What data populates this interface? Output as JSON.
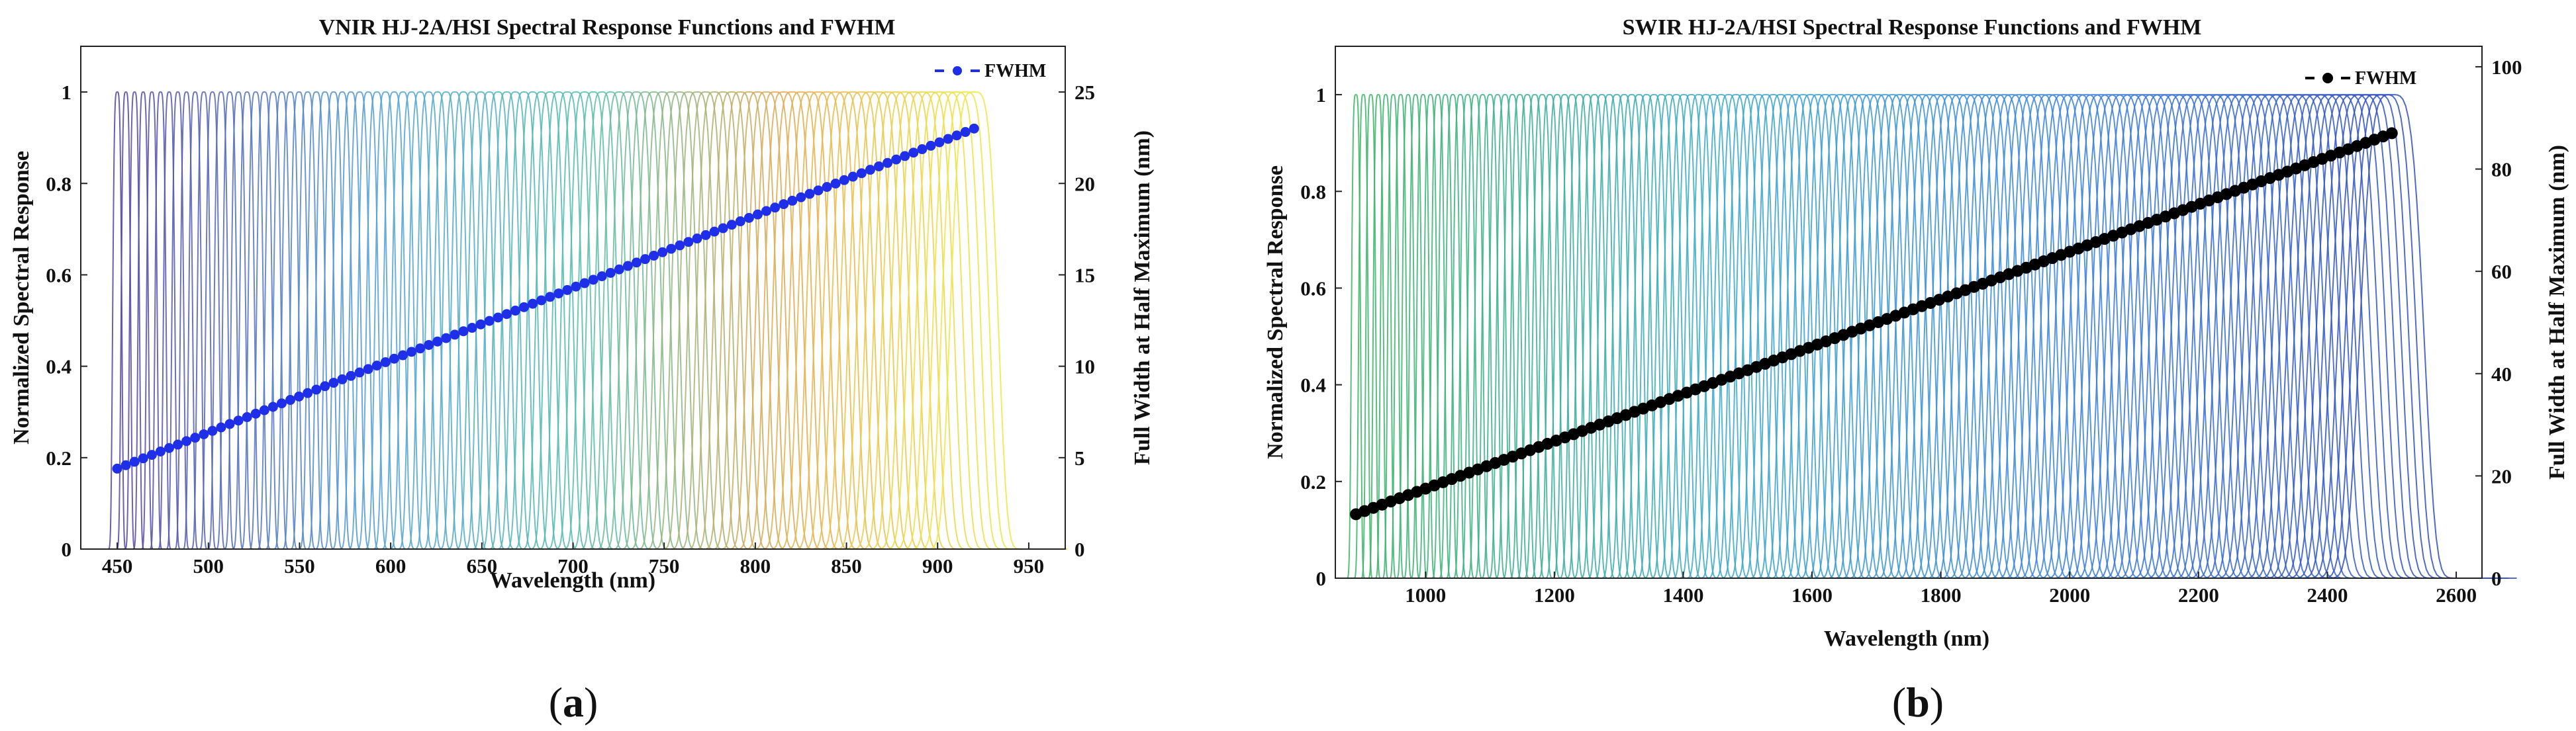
{
  "chart_data": [
    {
      "type": "line",
      "title": "VNIR HJ-2A/HSI Spectral Response Functions and FWHM",
      "xlabel": "Wavelength (nm)",
      "ylabel": "Normalized Spectral Response",
      "y2label": "Full Width at Half Maximum (nm)",
      "xlim": [
        430,
        970
      ],
      "ylim": [
        0,
        1.1
      ],
      "y2lim": [
        0,
        27.5
      ],
      "xticks": [
        450,
        500,
        550,
        600,
        650,
        700,
        750,
        800,
        850,
        900,
        950
      ],
      "yticks": [
        0,
        0.2,
        0.4,
        0.6,
        0.8,
        1
      ],
      "y2ticks": [
        0,
        5,
        10,
        15,
        20,
        25
      ],
      "srf": {
        "count": 100,
        "center_start": 450,
        "center_end": 920,
        "shape": "gaussian",
        "color_scheme": "purple-cyan-yellow"
      },
      "series": [
        {
          "name": "FWHM",
          "axis": "right",
          "color": "#1f2fe8",
          "marker": "circle",
          "x_start": 450,
          "x_end": 920,
          "points": 100,
          "y_start": 4.4,
          "y_end": 23
        }
      ],
      "legend": {
        "label": "FWHM",
        "position": "top-right"
      },
      "caption": {
        "open": "(",
        "letter": "a",
        "close": ")"
      }
    },
    {
      "type": "line",
      "title": "SWIR HJ-2A/HSI Spectral Response Functions and FWHM",
      "xlabel": "Wavelength (nm)",
      "ylabel": "Normalized Spectral Response",
      "y2label": "Full Width at Half Maximum (nm)",
      "xlim": [
        860,
        2640
      ],
      "ylim": [
        0,
        1.1
      ],
      "y2lim": [
        0,
        104
      ],
      "xticks": [
        1000,
        1200,
        1400,
        1600,
        1800,
        2000,
        2200,
        2400,
        2600
      ],
      "yticks": [
        0,
        0.2,
        0.4,
        0.6,
        0.8,
        1
      ],
      "y2ticks": [
        0,
        20,
        40,
        60,
        80,
        100
      ],
      "srf": {
        "count": 140,
        "center_start": 892,
        "center_end": 2500,
        "shape": "gaussian",
        "color_scheme": "green-blue"
      },
      "series": [
        {
          "name": "FWHM",
          "axis": "right",
          "color": "#000000",
          "marker": "circle",
          "x_start": 892,
          "x_end": 2500,
          "points": 120,
          "y_start": 12.5,
          "y_end": 87
        }
      ],
      "legend": {
        "label": "FWHM",
        "position": "top-right"
      },
      "caption": {
        "open": "(",
        "letter": "b",
        "close": ")"
      }
    }
  ]
}
